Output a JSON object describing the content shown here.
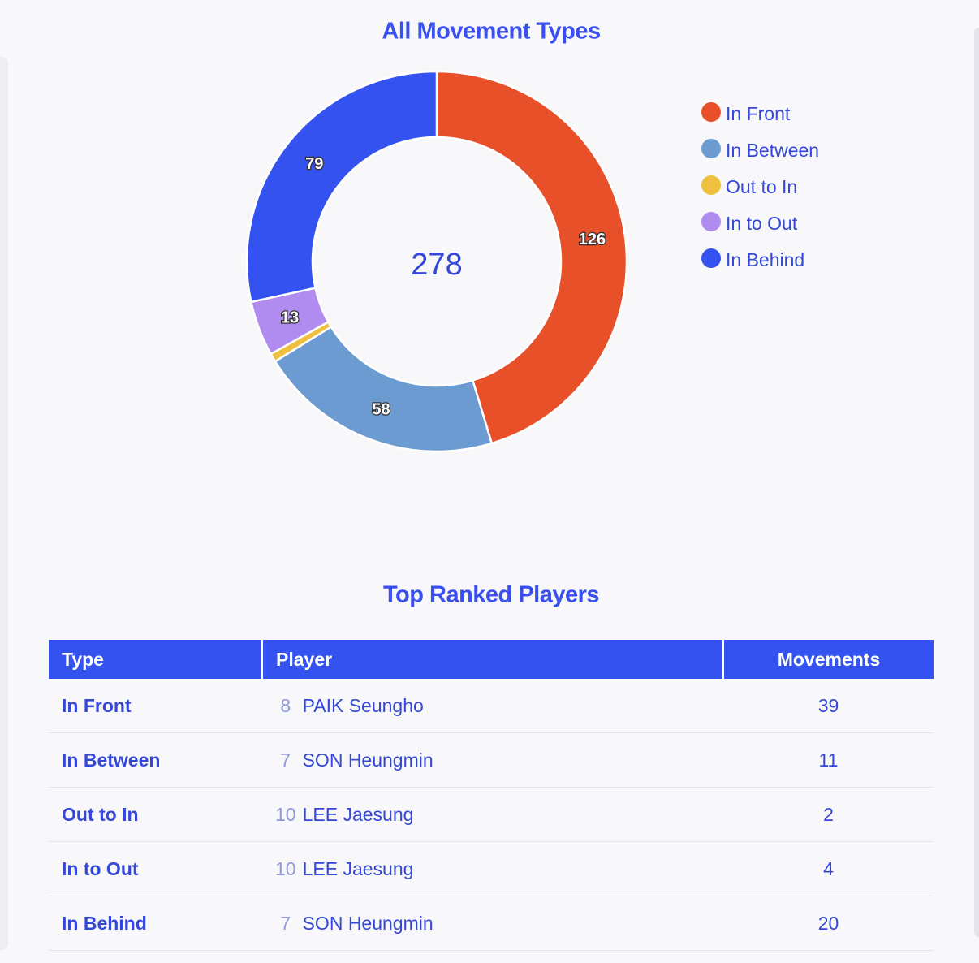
{
  "chart_data": {
    "type": "donut",
    "title": "All Movement Types",
    "categories": [
      "In Front",
      "In Between",
      "Out to In",
      "In to Out",
      "In Behind"
    ],
    "values": [
      126,
      58,
      2,
      13,
      79
    ],
    "colors": [
      "#e8502a",
      "#6b9bd1",
      "#efc040",
      "#b08cf0",
      "#3352f0"
    ],
    "total": 278,
    "legend": "right"
  },
  "table": {
    "title": "Top Ranked Players",
    "header": [
      "Type",
      "Player",
      "Movements"
    ],
    "rows": [
      [
        "In Front",
        "8",
        "PAIK Seungho",
        "39"
      ],
      [
        "In Between",
        "7",
        "SON Heungmin",
        "11"
      ],
      [
        "Out to In",
        "10",
        "LEE Jaesung",
        "2"
      ],
      [
        "In to Out",
        "10",
        "LEE Jaesung",
        "4"
      ],
      [
        "In Behind",
        "7",
        "SON Heungmin",
        "20"
      ]
    ]
  }
}
